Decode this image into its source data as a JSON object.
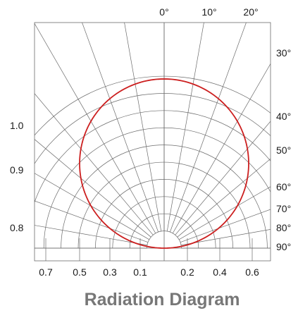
{
  "chart_data": {
    "type": "line",
    "chart_kind": "polar radiation pattern",
    "title": "Radiation Diagram",
    "angle_labels": [
      "0°",
      "10°",
      "20°",
      "30°",
      "40°",
      "50°",
      "60°",
      "70°",
      "80°",
      "90°"
    ],
    "left_scale_labels": [
      "1.0",
      "0.9",
      "0.8"
    ],
    "bottom_scale_labels": [
      "0.7",
      "0.5",
      "0.3",
      "0.1",
      "0.2",
      "0.4",
      "0.6"
    ],
    "radial_range": [
      0,
      1
    ],
    "grid": true,
    "series": [
      {
        "angle_deg": [
          -90,
          -80,
          -70,
          -60,
          -50,
          -40,
          -30,
          -20,
          -10,
          0,
          10,
          20,
          30,
          40,
          50,
          60,
          70,
          80,
          90
        ],
        "relative_intensity": [
          0.0,
          0.17,
          0.34,
          0.5,
          0.64,
          0.77,
          0.87,
          0.94,
          0.98,
          1.0,
          0.98,
          0.94,
          0.87,
          0.77,
          0.64,
          0.5,
          0.34,
          0.17,
          0.0
        ],
        "color": "#cc1f1f"
      }
    ],
    "colors": {
      "grid": "#6b6b6b",
      "curve": "#cc1f1f",
      "title": "#777777",
      "text": "#1a1a1a"
    }
  }
}
